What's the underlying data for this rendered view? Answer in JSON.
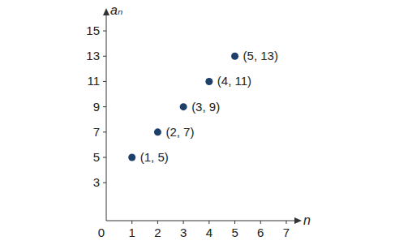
{
  "chart_data": {
    "type": "scatter",
    "x_label": "n",
    "y_label": "aₙ",
    "x": [
      1,
      2,
      3,
      4,
      5
    ],
    "values": [
      5,
      7,
      9,
      11,
      13
    ],
    "value_labels": [
      "(1, 5)",
      "(2, 7)",
      "(3, 9)",
      "(4, 11)",
      "(5, 13)"
    ],
    "data_labels": true,
    "color": "#1f3f6b",
    "marker": "circle",
    "xlim": [
      0,
      7.6
    ],
    "ylim": [
      0,
      16.8
    ],
    "xticks": [
      0,
      1,
      2,
      3,
      4,
      5,
      6,
      7
    ],
    "yticks": [
      3,
      5,
      7,
      9,
      11,
      13,
      15
    ],
    "grid": false
  }
}
